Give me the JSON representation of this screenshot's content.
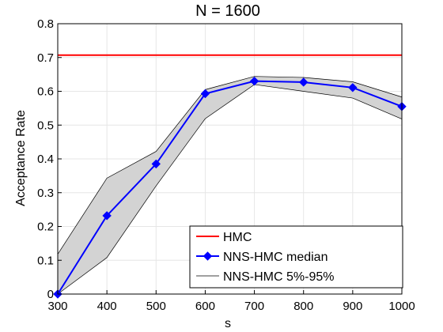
{
  "chart_data": {
    "type": "line",
    "title": "N = 1600",
    "xlabel": "s",
    "ylabel": "Acceptance Rate",
    "xlim": [
      300,
      1000
    ],
    "ylim": [
      0,
      0.8
    ],
    "xticks": [
      300,
      400,
      500,
      600,
      700,
      800,
      900,
      1000
    ],
    "yticks": [
      0,
      0.1,
      0.2,
      0.3,
      0.4,
      0.5,
      0.6,
      0.7,
      0.8
    ],
    "xtick_labels": [
      "300",
      "400",
      "500",
      "600",
      "700",
      "800",
      "900",
      "1000"
    ],
    "ytick_labels": [
      "0",
      "0.1",
      "0.2",
      "0.3",
      "0.4",
      "0.5",
      "0.6",
      "0.7",
      "0.8"
    ],
    "grid": true,
    "legend_position": "bottom-right",
    "x": [
      300,
      400,
      500,
      600,
      700,
      800,
      900,
      1000
    ],
    "series": [
      {
        "name": "HMC",
        "kind": "horizontal-line",
        "value": 0.707,
        "color": "#ff0000"
      },
      {
        "name": "NNS-HMC median",
        "kind": "line-marker",
        "marker": "diamond",
        "color": "#0000ff",
        "values": [
          0.0,
          0.232,
          0.385,
          0.593,
          0.63,
          0.627,
          0.611,
          0.555
        ]
      },
      {
        "name": "NNS-HMC 5%-95%",
        "kind": "band",
        "fill": "#d3d3d3",
        "line_color": "#000000",
        "lower": [
          0.0,
          0.108,
          0.32,
          0.519,
          0.62,
          0.6,
          0.58,
          0.518
        ],
        "upper": [
          0.118,
          0.343,
          0.422,
          0.605,
          0.644,
          0.641,
          0.628,
          0.583
        ]
      }
    ]
  }
}
